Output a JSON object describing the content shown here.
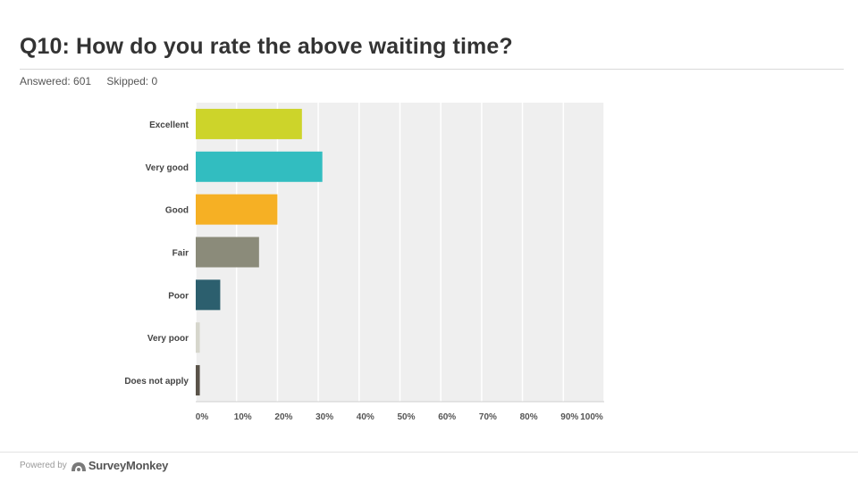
{
  "header": {
    "title": "Q10: How do you rate the above waiting time?",
    "answered_label": "Answered: 601",
    "skipped_label": "Skipped: 0"
  },
  "footer": {
    "powered_by": "Powered by",
    "brand": "SurveyMonkey",
    "logo_icon": "surveymonkey-logo-icon"
  },
  "chart_data": {
    "type": "bar",
    "orientation": "horizontal",
    "categories": [
      "Excellent",
      "Very good",
      "Good",
      "Fair",
      "Poor",
      "Very poor",
      "Does not apply"
    ],
    "values": [
      26,
      31,
      20,
      15.5,
      6,
      1,
      1
    ],
    "colors": [
      "#cdd42a",
      "#32bdc0",
      "#f6b024",
      "#8b8b7a",
      "#2c5f6e",
      "#d6d6cc",
      "#5a5349"
    ],
    "xlim": [
      0,
      100
    ],
    "x_ticks": [
      "0%",
      "10%",
      "20%",
      "30%",
      "40%",
      "50%",
      "60%",
      "70%",
      "80%",
      "90%",
      "100%"
    ],
    "grid": true,
    "plot_background": "#efefef"
  }
}
